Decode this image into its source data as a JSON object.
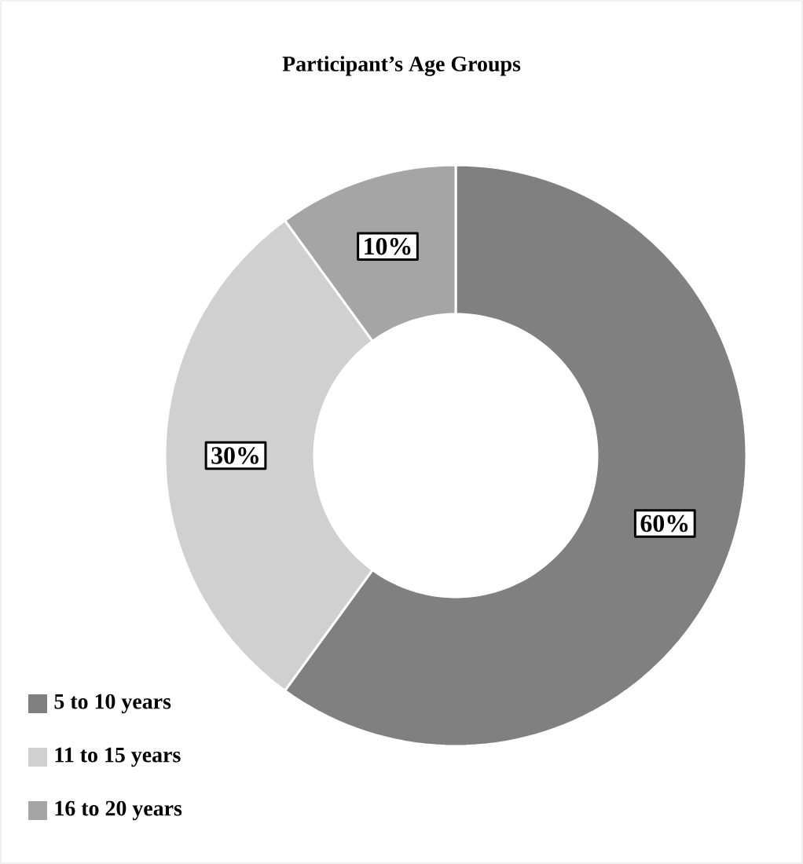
{
  "chart_data": {
    "type": "donut",
    "title": "Participant’s Age Groups",
    "categories": [
      "5 to 10 years",
      "11 to 15 years",
      "16 to 20 years"
    ],
    "values": [
      60,
      30,
      10
    ],
    "colors": [
      "#808080",
      "#d0d0d0",
      "#a5a5a5"
    ],
    "value_labels": [
      "60%",
      "30%",
      "10%"
    ],
    "legend": "bottom left"
  }
}
